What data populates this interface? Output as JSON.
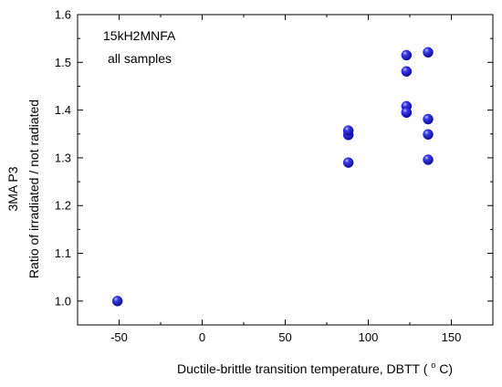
{
  "chart_data": {
    "type": "scatter",
    "title": "",
    "xlabel": "Ductile-brittle transition temperature, DBTT",
    "xlabel_unit_prefix": "(",
    "xlabel_unit_sup": "o",
    "xlabel_unit_suffix": "C)",
    "ylabel_line1": "3MA  P3",
    "ylabel_line2": "Ratio of irradiated / not radiated",
    "xlim": [
      -75,
      175
    ],
    "ylim": [
      0.95,
      1.6
    ],
    "xticks": [
      -50,
      0,
      50,
      100,
      150
    ],
    "yticks": [
      1.0,
      1.1,
      1.2,
      1.3,
      1.4,
      1.5,
      1.6
    ],
    "xtick_labels": [
      "-50",
      "0",
      "50",
      "100",
      "150"
    ],
    "ytick_labels": [
      "1.0",
      "1.1",
      "1.2",
      "1.3",
      "1.4",
      "1.5",
      "1.6"
    ],
    "grid": false,
    "annotations": [
      "15kH2MNFA",
      "all samples"
    ],
    "series": [
      {
        "color": "#1010cc",
        "x": [
          -51,
          88,
          88,
          88,
          123,
          123,
          123,
          123,
          123,
          136,
          136,
          136,
          136
        ],
        "y": [
          1.0,
          1.29,
          1.348,
          1.357,
          1.515,
          1.481,
          1.408,
          1.395,
          1.395,
          1.521,
          1.381,
          1.349,
          1.296
        ]
      }
    ]
  }
}
